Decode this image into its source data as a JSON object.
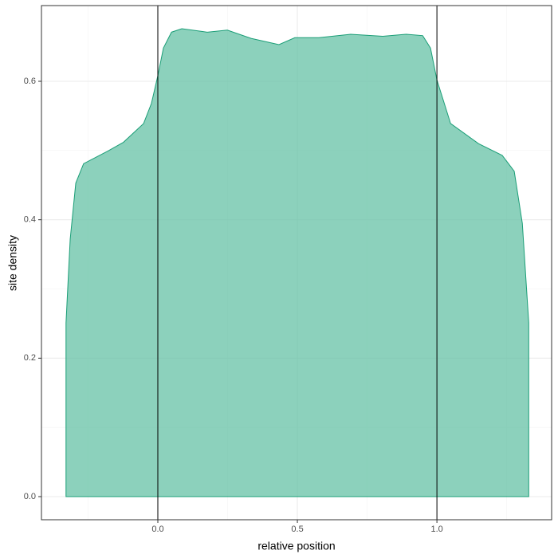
{
  "chart_data": {
    "type": "area",
    "x_label": "relative position",
    "y_label": "site density",
    "x": [
      -0.329,
      -0.329,
      -0.314,
      -0.294,
      -0.266,
      -0.18,
      -0.123,
      -0.051,
      -0.023,
      0,
      0.02,
      0.049,
      0.086,
      0.177,
      0.249,
      0.334,
      0.434,
      0.491,
      0.577,
      0.691,
      0.806,
      0.891,
      0.949,
      0.977,
      1.0,
      1.049,
      1.149,
      1.234,
      1.277,
      1.306,
      1.329,
      1.329
    ],
    "values": [
      0,
      0.251,
      0.372,
      0.453,
      0.481,
      0.499,
      0.512,
      0.539,
      0.568,
      0.608,
      0.648,
      0.671,
      0.676,
      0.671,
      0.674,
      0.662,
      0.653,
      0.663,
      0.663,
      0.668,
      0.665,
      0.668,
      0.666,
      0.648,
      0.602,
      0.539,
      0.51,
      0.493,
      0.47,
      0.395,
      0.251,
      0
    ],
    "color": "#66c2a5",
    "line_color": "#1b9e77",
    "fill_opacity": 0.75,
    "vlines": [
      0,
      1
    ],
    "xlim": [
      -0.417,
      1.411
    ],
    "ylim": [
      -0.0334,
      0.7094
    ],
    "xticks": [
      {
        "value": 0,
        "label": "0.0"
      },
      {
        "value": 0.5,
        "label": "0.5"
      },
      {
        "value": 1,
        "label": "1.0"
      }
    ],
    "yticks": [
      {
        "value": 0,
        "label": "0.0"
      },
      {
        "value": 0.2,
        "label": "0.2"
      },
      {
        "value": 0.4,
        "label": "0.4"
      },
      {
        "value": 0.6,
        "label": "0.6"
      }
    ],
    "x_minor_ticks": [
      -0.25,
      0.25,
      0.75,
      1.25
    ],
    "y_minor_ticks": [
      0.1,
      0.3,
      0.5
    ],
    "grid": true
  }
}
